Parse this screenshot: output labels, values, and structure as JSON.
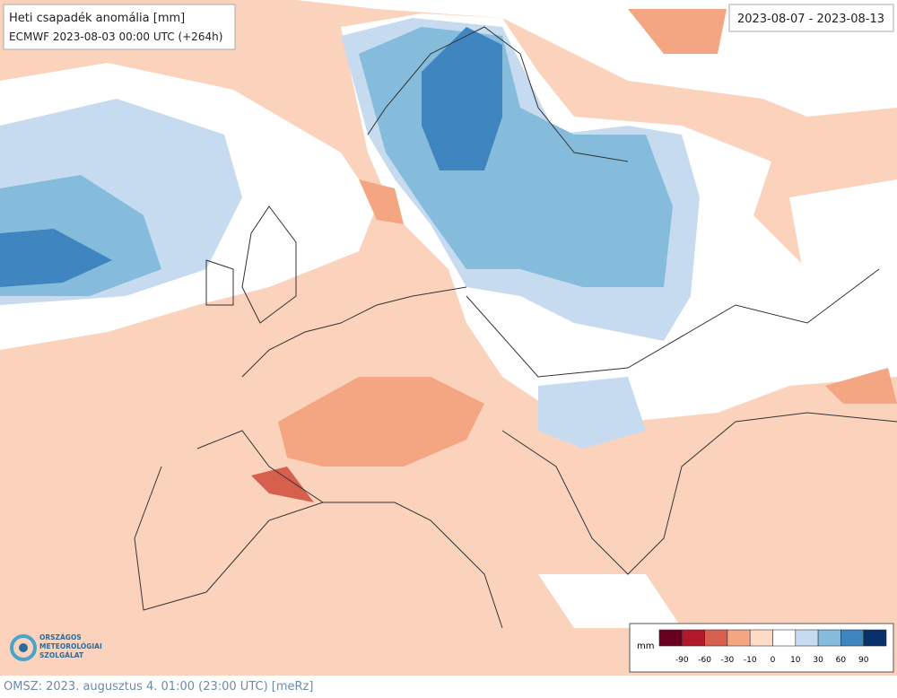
{
  "header": {
    "title": "Heti csapadék anomália [mm]",
    "subtitle": "ECMWF 2023-08-03 00:00 UTC (+264h)"
  },
  "date_range": "2023-08-07 - 2023-08-13",
  "legend": {
    "unit": "mm",
    "labels": [
      "-90",
      "-60",
      "-30",
      "-10",
      "0",
      "10",
      "30",
      "60",
      "90"
    ],
    "colors": [
      "#67001f",
      "#b2182b",
      "#d6604d",
      "#f4a582",
      "#fddbc7",
      "#ffffff",
      "#c6dbef",
      "#85bcdb",
      "#3f86c0",
      "#08306b"
    ]
  },
  "logo": {
    "lines": [
      "ORSZÁGOS",
      "METEOROLÓGIAI",
      "SZOLGÁLAT"
    ]
  },
  "footer": "OMSZ: 2023. augusztus 4. 01:00 (23:00 UTC) [meRz]"
}
